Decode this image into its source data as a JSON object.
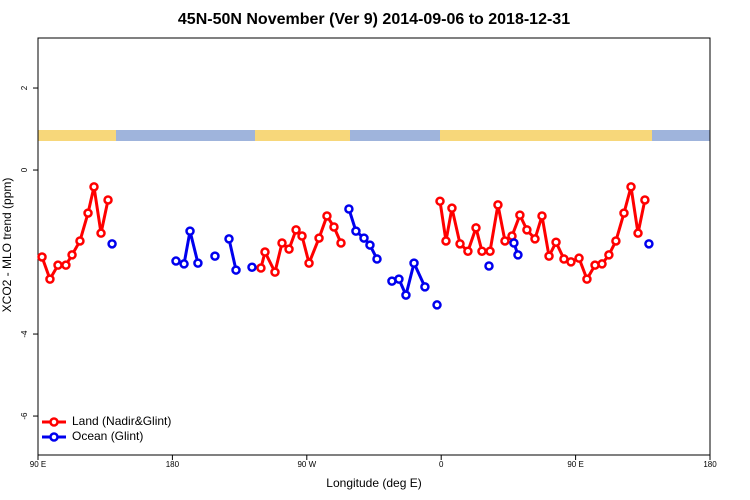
{
  "chart_data": {
    "type": "line",
    "title": "45N-50N November (Ver 9)   2014-09-06 to 2018-12-31",
    "x_label": "Longitude (deg E)",
    "y_label": "XCO2 - MLO trend (ppm)",
    "xlim": [
      90,
      540
    ],
    "ylim": [
      -6.95,
      3.22
    ],
    "xticks": [
      {
        "value": 90,
        "label": "90 E"
      },
      {
        "value": 180,
        "label": "180"
      },
      {
        "value": 270,
        "label": "90 W"
      },
      {
        "value": 360,
        "label": "0"
      },
      {
        "value": 450,
        "label": "90 E"
      },
      {
        "value": 540,
        "label": "180"
      }
    ],
    "yticks": [
      -6,
      -4,
      0,
      2
    ],
    "legend": "bottom-left",
    "series": [
      {
        "name": "Land (Nadir&Glint)",
        "color": "#ff0000",
        "x": [
          92.7,
          98.0,
          103.4,
          108.7,
          112.8,
          118.1,
          123.5,
          127.5,
          132.2,
          136.9,
          null,
          239.3,
          242.0,
          248.7,
          253.4,
          258.1,
          262.8,
          266.8,
          271.5,
          278.2,
          283.5,
          288.2,
          292.9,
          null,
          359.2,
          363.2,
          367.2,
          372.6,
          377.9,
          383.3,
          387.3,
          392.7,
          398.0,
          402.7,
          407.4,
          412.7,
          417.4,
          422.8,
          427.5,
          432.2,
          436.9,
          442.2,
          446.9,
          452.3,
          457.6,
          463.0,
          467.7,
          472.3,
          477.0,
          482.4,
          487.1,
          491.8,
          496.4
        ],
        "values": [
          -2.12,
          -2.66,
          -2.32,
          -2.32,
          -2.07,
          -1.73,
          -1.05,
          -0.41,
          -1.54,
          -0.73,
          null,
          -2.39,
          -2.0,
          -2.49,
          -1.78,
          -1.93,
          -1.46,
          -1.61,
          -2.27,
          -1.66,
          -1.12,
          -1.39,
          -1.78,
          null,
          -0.76,
          -1.73,
          -0.93,
          -1.8,
          -1.98,
          -1.41,
          -1.98,
          -1.98,
          -0.85,
          -1.73,
          -1.61,
          -1.1,
          -1.46,
          -1.68,
          -1.12,
          -2.1,
          -1.76,
          -2.17,
          -2.24,
          -2.15,
          -2.66,
          -2.32,
          -2.29,
          -2.07,
          -1.73,
          -1.05,
          -0.41,
          -1.54,
          -0.73
        ]
      },
      {
        "name": "Ocean (Glint)",
        "color": "#0000ee",
        "x": [
          139.6,
          null,
          182.4,
          187.8,
          191.8,
          197.1,
          null,
          208.5,
          null,
          217.9,
          222.6,
          null,
          233.3,
          null,
          298.2,
          302.9,
          308.3,
          312.3,
          317.0,
          null,
          327.0,
          331.7,
          336.4,
          341.8,
          349.1,
          null,
          357.2,
          null,
          392.0,
          null,
          408.7,
          411.4,
          null,
          499.1
        ],
        "values": [
          -1.8,
          null,
          -2.22,
          -2.29,
          -1.49,
          -2.27,
          null,
          -2.1,
          null,
          -1.68,
          -2.44,
          null,
          -2.37,
          null,
          -0.95,
          -1.49,
          -1.66,
          -1.83,
          -2.17,
          null,
          -2.71,
          -2.66,
          -3.05,
          -2.27,
          -2.85,
          null,
          -3.29,
          null,
          -2.34,
          null,
          -1.78,
          -2.07,
          null,
          -1.8
        ]
      }
    ]
  }
}
